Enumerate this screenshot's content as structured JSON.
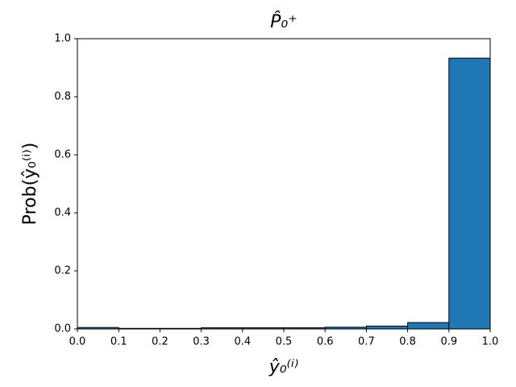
{
  "chart_data": {
    "type": "histogram",
    "title": "P̂₀⁺",
    "x_label": "ŷ₀⁽ⁱ⁾",
    "y_label": "Prob(ŷ₀⁽ⁱ⁾)",
    "bins": [
      0,
      0.1,
      0.2,
      0.3,
      0.4,
      0.5,
      0.6,
      0.7,
      0.8,
      0.9,
      1
    ],
    "values": [
      0.005,
      0.002,
      0.002,
      0.004,
      0.004,
      0.004,
      0.006,
      0.01,
      0.022,
      0.933
    ],
    "color": "#1f77b4",
    "edgecolor": "#000000",
    "xlim": [
      0,
      1
    ],
    "ylim": [
      0,
      1
    ],
    "xticks": [
      {
        "value": 0,
        "label": "0.0"
      },
      0.1,
      0.2,
      0.3,
      0.4,
      0.5,
      0.6,
      0.7,
      0.8,
      0.9,
      {
        "value": 1,
        "label": "1.0"
      }
    ],
    "yticks": [
      {
        "value": 0,
        "label": "0.0"
      },
      0.2,
      0.4,
      0.6,
      0.8,
      {
        "value": 1,
        "label": "1.0"
      }
    ],
    "grid": false
  }
}
